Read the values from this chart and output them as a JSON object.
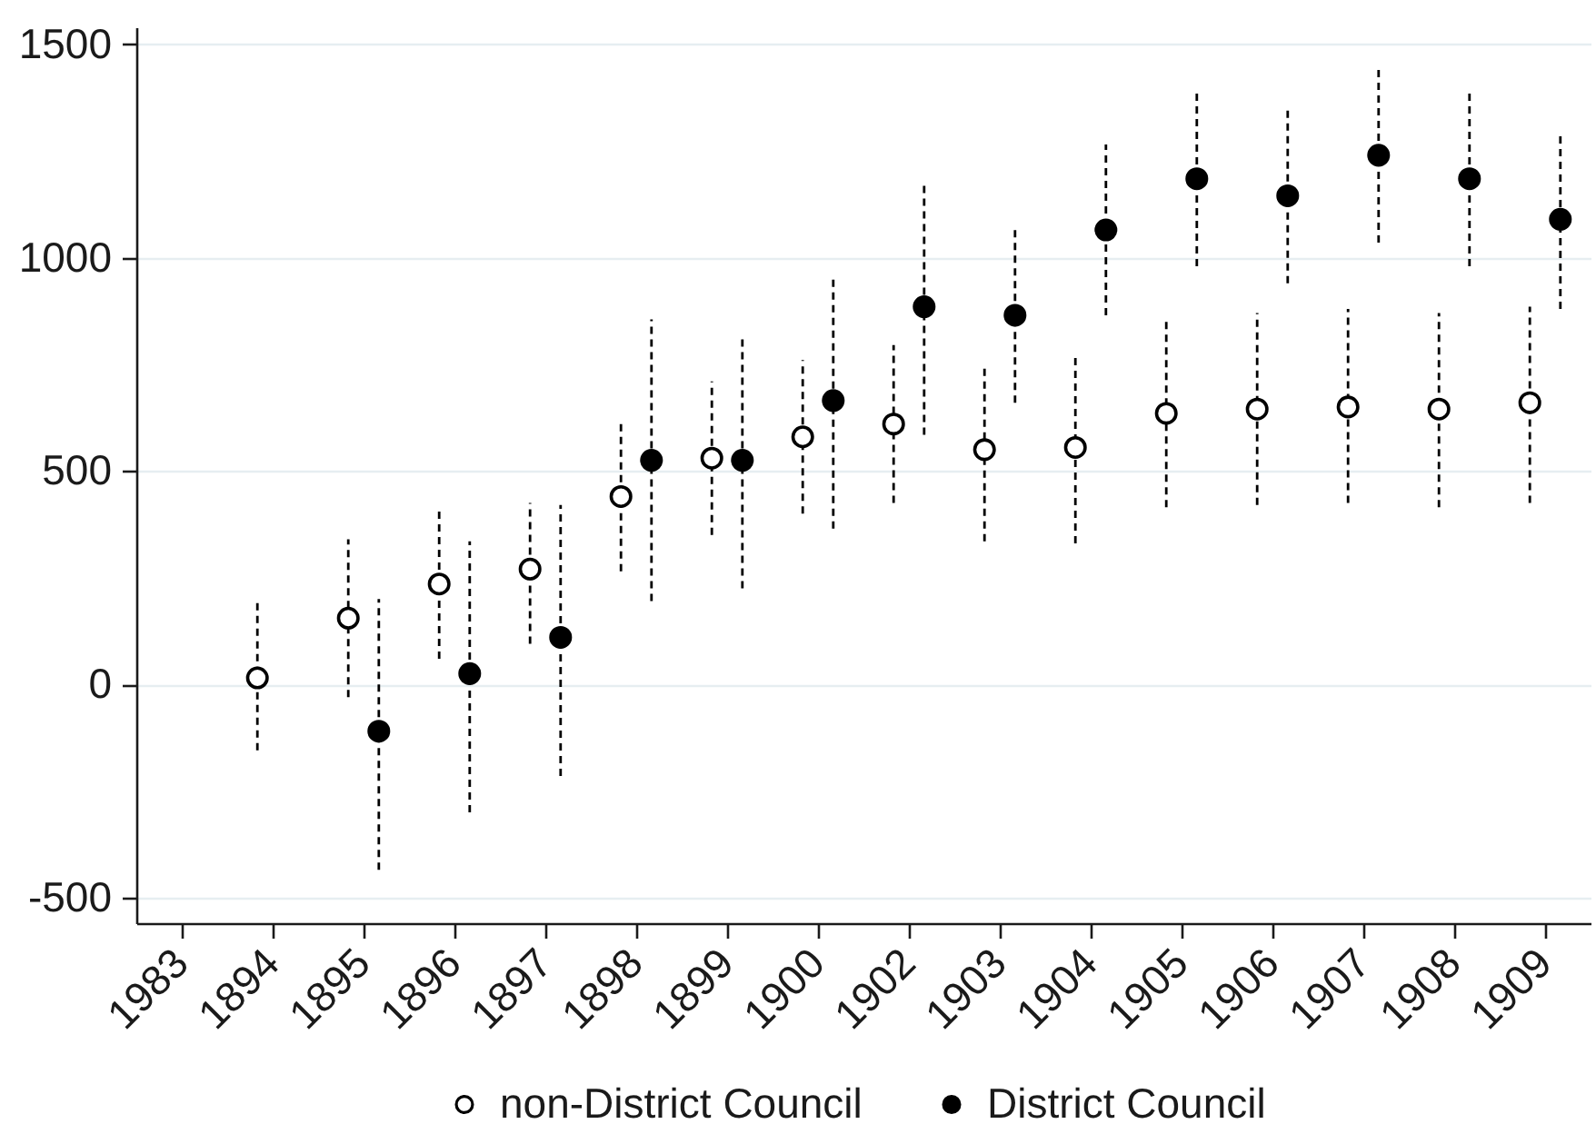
{
  "chart_data": {
    "type": "scatter",
    "categories": [
      "1983",
      "1894",
      "1895",
      "1896",
      "1897",
      "1898",
      "1899",
      "1900",
      "1902",
      "1903",
      "1904",
      "1905",
      "1906",
      "1907",
      "1908",
      "1909"
    ],
    "series": [
      {
        "name": "non-District Council",
        "color": "#ffffff",
        "values": [
          null,
          15,
          155,
          235,
          270,
          440,
          530,
          580,
          610,
          550,
          555,
          635,
          645,
          650,
          645,
          660
        ],
        "errors": [
          null,
          [
            -155,
            190
          ],
          [
            -30,
            340
          ],
          [
            60,
            410
          ],
          [
            95,
            425
          ],
          [
            265,
            615
          ],
          [
            350,
            710
          ],
          [
            400,
            760
          ],
          [
            425,
            795
          ],
          [
            335,
            750
          ],
          [
            330,
            775
          ],
          [
            415,
            860
          ],
          [
            420,
            870
          ],
          [
            425,
            880
          ],
          [
            415,
            870
          ],
          [
            425,
            885
          ]
        ]
      },
      {
        "name": "District Council",
        "color": "#000000",
        "values": [
          null,
          null,
          -110,
          25,
          110,
          525,
          525,
          665,
          885,
          865,
          1065,
          1185,
          1145,
          1240,
          1185,
          1090
        ],
        "errors": [
          null,
          null,
          [
            -435,
            200
          ],
          [
            -300,
            335
          ],
          [
            -215,
            420
          ],
          [
            195,
            855
          ],
          [
            225,
            815
          ],
          [
            365,
            950
          ],
          [
            585,
            1175
          ],
          [
            660,
            1070
          ],
          [
            865,
            1265
          ],
          [
            980,
            1385
          ],
          [
            940,
            1350
          ],
          [
            1035,
            1445
          ],
          [
            980,
            1390
          ],
          [
            880,
            1295
          ]
        ]
      }
    ],
    "ylim": [
      -560,
      1540
    ],
    "yticks": [
      -500,
      0,
      500,
      1000,
      1500
    ],
    "grid": "y",
    "legend": "bottom",
    "marker": "circle",
    "line_style": "dashed"
  }
}
